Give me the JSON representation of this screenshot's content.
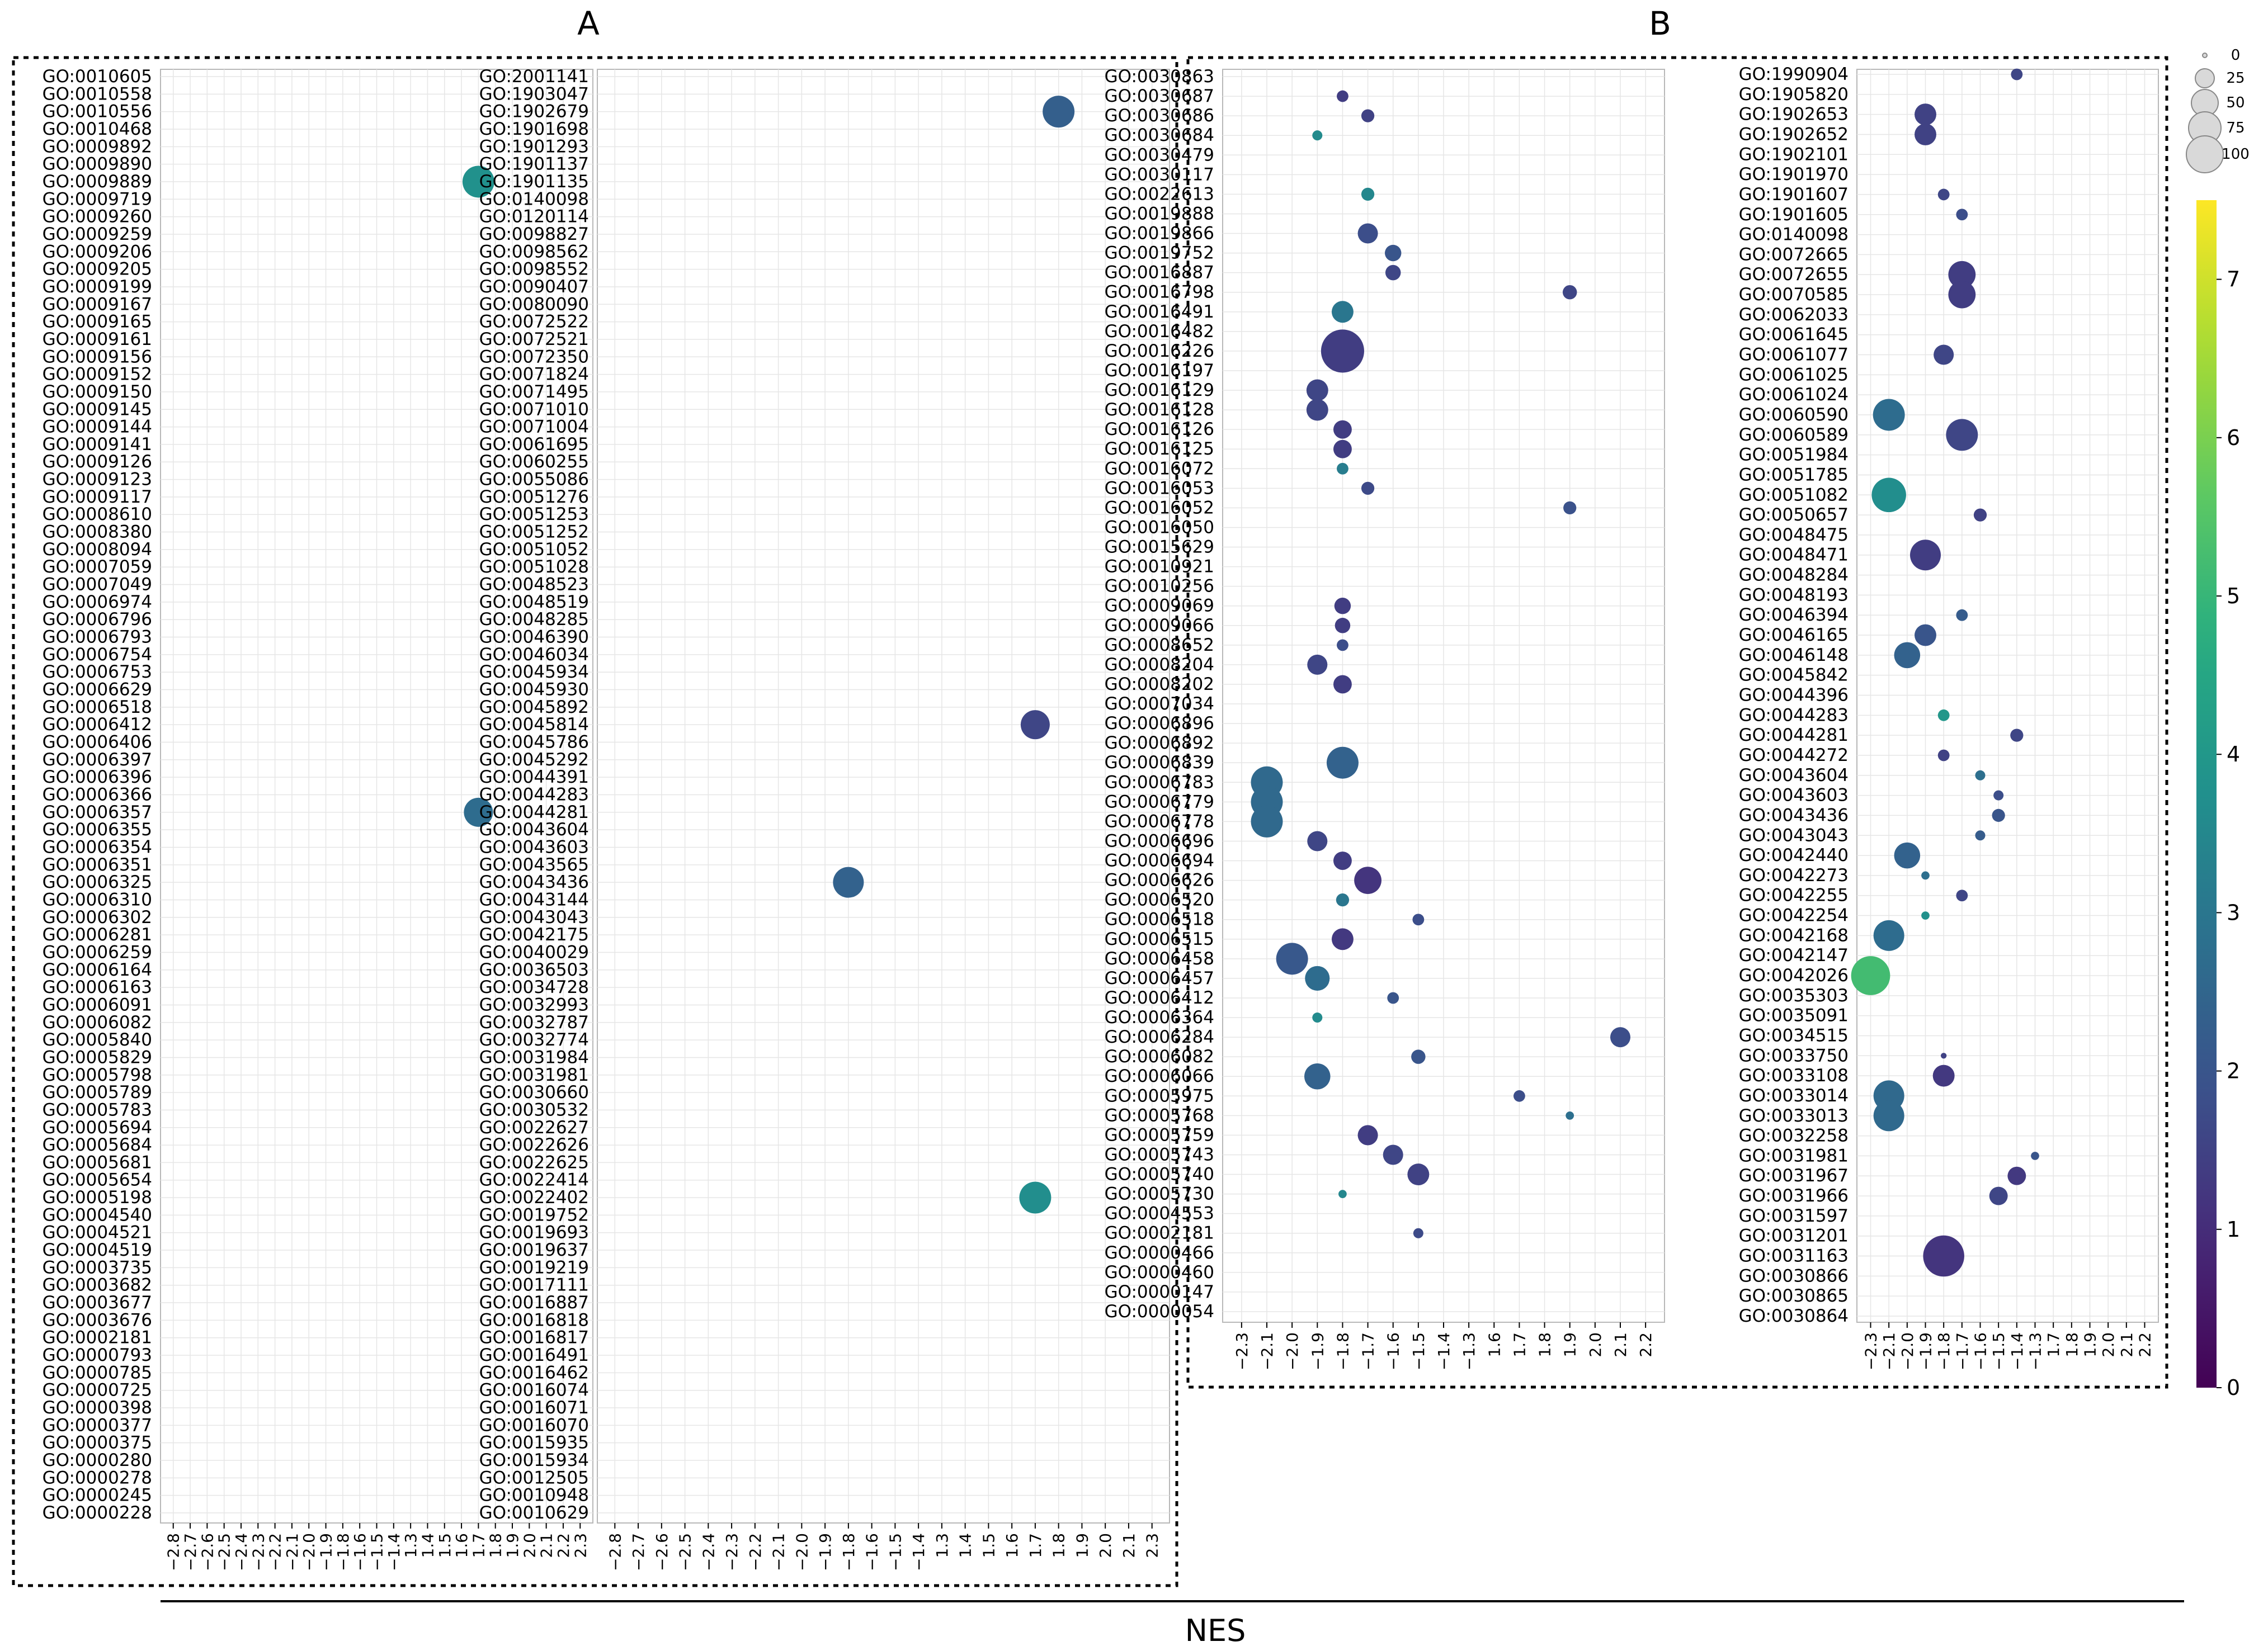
{
  "panel_labels": [
    "A",
    "B"
  ],
  "xaxis_title": "NES",
  "size_legend_values": [
    "0",
    "25",
    "50",
    "75",
    "100"
  ],
  "colorbar_ticks": [
    "0",
    "1",
    "2",
    "3",
    "4",
    "5",
    "6",
    "7"
  ],
  "chart_data": [
    {
      "type": "scatter",
      "panel": "A",
      "xlabel": "",
      "ylabel": "",
      "xticks": [
        "-2.8",
        "-2.7",
        "-2.6",
        "-2.5",
        "-2.4",
        "-2.3",
        "-2.2",
        "-2.1",
        "-2.0",
        "-1.9",
        "-1.8",
        "-1.6",
        "-1.5",
        "-1.4",
        "1.3",
        "1.4",
        "1.5",
        "1.6",
        "1.7",
        "1.8",
        "1.9",
        "2.0",
        "2.1",
        "2.2",
        "2.3"
      ],
      "categories": [
        "GO:0010605",
        "GO:0010558",
        "GO:0010556",
        "GO:0010468",
        "GO:0009892",
        "GO:0009890",
        "GO:0009889",
        "GO:0009719",
        "GO:0009260",
        "GO:0009259",
        "GO:0009206",
        "GO:0009205",
        "GO:0009199",
        "GO:0009167",
        "GO:0009165",
        "GO:0009161",
        "GO:0009156",
        "GO:0009152",
        "GO:0009150",
        "GO:0009145",
        "GO:0009144",
        "GO:0009141",
        "GO:0009126",
        "GO:0009123",
        "GO:0009117",
        "GO:0008610",
        "GO:0008380",
        "GO:0008094",
        "GO:0007059",
        "GO:0007049",
        "GO:0006974",
        "GO:0006796",
        "GO:0006793",
        "GO:0006754",
        "GO:0006753",
        "GO:0006629",
        "GO:0006518",
        "GO:0006412",
        "GO:0006406",
        "GO:0006397",
        "GO:0006396",
        "GO:0006366",
        "GO:0006357",
        "GO:0006355",
        "GO:0006354",
        "GO:0006351",
        "GO:0006325",
        "GO:0006310",
        "GO:0006302",
        "GO:0006281",
        "GO:0006259",
        "GO:0006164",
        "GO:0006163",
        "GO:0006091",
        "GO:0006082",
        "GO:0005840",
        "GO:0005829",
        "GO:0005798",
        "GO:0005789",
        "GO:0005783",
        "GO:0005694",
        "GO:0005684",
        "GO:0005681",
        "GO:0005654",
        "GO:0005198",
        "GO:0004540",
        "GO:0004521",
        "GO:0004519",
        "GO:0003735",
        "GO:0003682",
        "GO:0003677",
        "GO:0003676",
        "GO:0002181",
        "GO:0000793",
        "GO:0000785",
        "GO:0000725",
        "GO:0000398",
        "GO:0000377",
        "GO:0000375",
        "GO:0000280",
        "GO:0000278",
        "GO:0000245",
        "GO:0000228"
      ],
      "points": [
        {
          "go": "GO:0009889",
          "x": "1.7",
          "size": 30,
          "color": 3.8
        },
        {
          "go": "GO:0006357",
          "x": "1.7",
          "size": 25,
          "color": 2.7
        }
      ]
    },
    {
      "type": "scatter",
      "panel": "A",
      "xlabel": "",
      "ylabel": "",
      "xticks": [
        "-2.8",
        "-2.7",
        "-2.6",
        "-2.5",
        "-2.4",
        "-2.3",
        "-2.2",
        "-2.1",
        "-2.0",
        "-1.9",
        "-1.8",
        "-1.6",
        "-1.5",
        "-1.4",
        "1.3",
        "1.4",
        "1.5",
        "1.6",
        "1.7",
        "1.8",
        "1.9",
        "2.0",
        "2.1",
        "2.3"
      ],
      "categories": [
        "GO:2001141",
        "GO:1903047",
        "GO:1902679",
        "GO:1901698",
        "GO:1901293",
        "GO:1901137",
        "GO:1901135",
        "GO:0140098",
        "GO:0120114",
        "GO:0098827",
        "GO:0098562",
        "GO:0098552",
        "GO:0090407",
        "GO:0080090",
        "GO:0072522",
        "GO:0072521",
        "GO:0072350",
        "GO:0071824",
        "GO:0071495",
        "GO:0071010",
        "GO:0071004",
        "GO:0061695",
        "GO:0060255",
        "GO:0055086",
        "GO:0051276",
        "GO:0051253",
        "GO:0051252",
        "GO:0051052",
        "GO:0051028",
        "GO:0048523",
        "GO:0048519",
        "GO:0048285",
        "GO:0046390",
        "GO:0046034",
        "GO:0045934",
        "GO:0045930",
        "GO:0045892",
        "GO:0045814",
        "GO:0045786",
        "GO:0045292",
        "GO:0044391",
        "GO:0044283",
        "GO:0044281",
        "GO:0043604",
        "GO:0043603",
        "GO:0043565",
        "GO:0043436",
        "GO:0043144",
        "GO:0043043",
        "GO:0042175",
        "GO:0040029",
        "GO:0036503",
        "GO:0034728",
        "GO:0032993",
        "GO:0032787",
        "GO:0032774",
        "GO:0031984",
        "GO:0031981",
        "GO:0030660",
        "GO:0030532",
        "GO:0022627",
        "GO:0022626",
        "GO:0022625",
        "GO:0022414",
        "GO:0022402",
        "GO:0019752",
        "GO:0019693",
        "GO:0019637",
        "GO:0019219",
        "GO:0017111",
        "GO:0016887",
        "GO:0016818",
        "GO:0016817",
        "GO:0016491",
        "GO:0016462",
        "GO:0016074",
        "GO:0016071",
        "GO:0016070",
        "GO:0015935",
        "GO:0015934",
        "GO:0012505",
        "GO:0010948",
        "GO:0010629"
      ],
      "points": [
        {
          "go": "GO:1902679",
          "x": "1.8",
          "size": 30,
          "color": 2.3
        },
        {
          "go": "GO:0045814",
          "x": "1.7",
          "size": 25,
          "color": 1.6
        },
        {
          "go": "GO:0043436",
          "x": "-1.8",
          "size": 28,
          "color": 2.4
        },
        {
          "go": "GO:0022402",
          "x": "1.7",
          "size": 30,
          "color": 3.7
        }
      ]
    },
    {
      "type": "scatter",
      "panel": "B",
      "xlabel": "",
      "ylabel": "",
      "xticks": [
        "-2.3",
        "-2.1",
        "-2.0",
        "-1.9",
        "-1.8",
        "-1.7",
        "-1.6",
        "-1.5",
        "-1.4",
        "-1.3",
        "1.6",
        "1.7",
        "1.8",
        "1.9",
        "2.0",
        "2.1",
        "2.2"
      ],
      "categories": [
        "GO:0030863",
        "GO:0030687",
        "GO:0030686",
        "GO:0030684",
        "GO:0030479",
        "GO:0030117",
        "GO:0022613",
        "GO:0019888",
        "GO:0019866",
        "GO:0019752",
        "GO:0016887",
        "GO:0016798",
        "GO:0016491",
        "GO:0016482",
        "GO:0016226",
        "GO:0016197",
        "GO:0016129",
        "GO:0016128",
        "GO:0016126",
        "GO:0016125",
        "GO:0016072",
        "GO:0016053",
        "GO:0016052",
        "GO:0016050",
        "GO:0015629",
        "GO:0010921",
        "GO:0010256",
        "GO:0009069",
        "GO:0009066",
        "GO:0008652",
        "GO:0008204",
        "GO:0008202",
        "GO:0007034",
        "GO:0006896",
        "GO:0006892",
        "GO:0006839",
        "GO:0006783",
        "GO:0006779",
        "GO:0006778",
        "GO:0006696",
        "GO:0006694",
        "GO:0006626",
        "GO:0006520",
        "GO:0006518",
        "GO:0006515",
        "GO:0006458",
        "GO:0006457",
        "GO:0006412",
        "GO:0006364",
        "GO:0006284",
        "GO:0006082",
        "GO:0006066",
        "GO:0005975",
        "GO:0005768",
        "GO:0005759",
        "GO:0005743",
        "GO:0005740",
        "GO:0005730",
        "GO:0004553",
        "GO:0002181",
        "GO:0000466",
        "GO:0000460",
        "GO:0000147",
        "GO:0000054"
      ],
      "points": [
        {
          "go": "GO:0030687",
          "x": "-1.8",
          "size": 4,
          "color": 1.4
        },
        {
          "go": "GO:0030686",
          "x": "-1.7",
          "size": 5,
          "color": 1.5
        },
        {
          "go": "GO:0030684",
          "x": "-1.9",
          "size": 3,
          "color": 3.6
        },
        {
          "go": "GO:0022613",
          "x": "-1.7",
          "size": 5,
          "color": 3.5
        },
        {
          "go": "GO:0019866",
          "x": "-1.7",
          "size": 12,
          "color": 1.8
        },
        {
          "go": "GO:0019752",
          "x": "-1.6",
          "size": 8,
          "color": 2.0
        },
        {
          "go": "GO:0016887",
          "x": "-1.6",
          "size": 7,
          "color": 1.6
        },
        {
          "go": "GO:0016798",
          "x": "1.9",
          "size": 6,
          "color": 1.6
        },
        {
          "go": "GO:0016491",
          "x": "-1.8",
          "size": 14,
          "color": 3.0
        },
        {
          "go": "GO:0016226",
          "x": "-1.8",
          "size": 55,
          "color": 1.4
        },
        {
          "go": "GO:0016129",
          "x": "-1.9",
          "size": 14,
          "color": 1.6
        },
        {
          "go": "GO:0016128",
          "x": "-1.9",
          "size": 14,
          "color": 1.6
        },
        {
          "go": "GO:0016126",
          "x": "-1.8",
          "size": 10,
          "color": 1.4
        },
        {
          "go": "GO:0016125",
          "x": "-1.8",
          "size": 10,
          "color": 1.4
        },
        {
          "go": "GO:0016072",
          "x": "-1.8",
          "size": 4,
          "color": 3.2
        },
        {
          "go": "GO:0016053",
          "x": "-1.7",
          "size": 5,
          "color": 1.7
        },
        {
          "go": "GO:0016052",
          "x": "1.9",
          "size": 5,
          "color": 1.9
        },
        {
          "go": "GO:0009069",
          "x": "-1.8",
          "size": 8,
          "color": 1.4
        },
        {
          "go": "GO:0009066",
          "x": "-1.8",
          "size": 7,
          "color": 1.4
        },
        {
          "go": "GO:0008652",
          "x": "-1.8",
          "size": 4,
          "color": 1.8
        },
        {
          "go": "GO:0008204",
          "x": "-1.9",
          "size": 12,
          "color": 1.6
        },
        {
          "go": "GO:0008202",
          "x": "-1.8",
          "size": 10,
          "color": 1.4
        },
        {
          "go": "GO:0006839",
          "x": "-1.8",
          "size": 30,
          "color": 2.4
        },
        {
          "go": "GO:0006783",
          "x": "-2.1",
          "size": 30,
          "color": 2.6
        },
        {
          "go": "GO:0006779",
          "x": "-2.1",
          "size": 30,
          "color": 2.6
        },
        {
          "go": "GO:0006778",
          "x": "-2.1",
          "size": 30,
          "color": 2.6
        },
        {
          "go": "GO:0006696",
          "x": "-1.9",
          "size": 12,
          "color": 1.6
        },
        {
          "go": "GO:0006694",
          "x": "-1.8",
          "size": 10,
          "color": 1.4
        },
        {
          "go": "GO:0006626",
          "x": "-1.7",
          "size": 22,
          "color": 1.2
        },
        {
          "go": "GO:0006520",
          "x": "-1.8",
          "size": 5,
          "color": 3.0
        },
        {
          "go": "GO:0006518",
          "x": "-1.5",
          "size": 4,
          "color": 1.8
        },
        {
          "go": "GO:0006515",
          "x": "-1.8",
          "size": 14,
          "color": 1.3
        },
        {
          "go": "GO:0006458",
          "x": "-2.0",
          "size": 30,
          "color": 2.1
        },
        {
          "go": "GO:0006457",
          "x": "-1.9",
          "size": 18,
          "color": 2.7
        },
        {
          "go": "GO:0006412",
          "x": "-1.6",
          "size": 4,
          "color": 2.0
        },
        {
          "go": "GO:0006364",
          "x": "-1.9",
          "size": 3,
          "color": 3.6
        },
        {
          "go": "GO:0006284",
          "x": "2.1",
          "size": 12,
          "color": 1.8
        },
        {
          "go": "GO:0006082",
          "x": "-1.5",
          "size": 6,
          "color": 2.0
        },
        {
          "go": "GO:0006066",
          "x": "-1.9",
          "size": 20,
          "color": 2.4
        },
        {
          "go": "GO:0005975",
          "x": "1.7",
          "size": 4,
          "color": 1.8
        },
        {
          "go": "GO:0005768",
          "x": "1.9",
          "size": 2,
          "color": 2.8
        },
        {
          "go": "GO:0005759",
          "x": "-1.7",
          "size": 12,
          "color": 1.4
        },
        {
          "go": "GO:0005743",
          "x": "-1.6",
          "size": 12,
          "color": 1.6
        },
        {
          "go": "GO:0005740",
          "x": "-1.5",
          "size": 14,
          "color": 1.5
        },
        {
          "go": "GO:0005730",
          "x": "-1.8",
          "size": 2,
          "color": 3.5
        },
        {
          "go": "GO:0002181",
          "x": "-1.5",
          "size": 3,
          "color": 1.7
        }
      ]
    },
    {
      "type": "scatter",
      "panel": "B",
      "xlabel": "",
      "ylabel": "",
      "xticks": [
        "-2.3",
        "-2.1",
        "-2.0",
        "-1.9",
        "-1.8",
        "-1.7",
        "-1.6",
        "-1.5",
        "-1.4",
        "-1.3",
        "1.7",
        "1.8",
        "1.9",
        "2.0",
        "2.1",
        "2.2"
      ],
      "categories": [
        "GO:1990904",
        "GO:1905820",
        "GO:1902653",
        "GO:1902652",
        "GO:1902101",
        "GO:1901970",
        "GO:1901607",
        "GO:1901605",
        "GO:0140098",
        "GO:0072665",
        "GO:0072655",
        "GO:0070585",
        "GO:0062033",
        "GO:0061645",
        "GO:0061077",
        "GO:0061025",
        "GO:0061024",
        "GO:0060590",
        "GO:0060589",
        "GO:0051984",
        "GO:0051785",
        "GO:0051082",
        "GO:0050657",
        "GO:0048475",
        "GO:0048471",
        "GO:0048284",
        "GO:0048193",
        "GO:0046394",
        "GO:0046165",
        "GO:0046148",
        "GO:0045842",
        "GO:0044396",
        "GO:0044283",
        "GO:0044281",
        "GO:0044272",
        "GO:0043604",
        "GO:0043603",
        "GO:0043436",
        "GO:0043043",
        "GO:0042440",
        "GO:0042273",
        "GO:0042255",
        "GO:0042254",
        "GO:0042168",
        "GO:0042147",
        "GO:0042026",
        "GO:0035303",
        "GO:0035091",
        "GO:0034515",
        "GO:0033750",
        "GO:0033108",
        "GO:0033014",
        "GO:0033013",
        "GO:0032258",
        "GO:0031981",
        "GO:0031967",
        "GO:0031966",
        "GO:0031597",
        "GO:0031201",
        "GO:0031163",
        "GO:0030866",
        "GO:0030865",
        "GO:0030864"
      ],
      "points": [
        {
          "go": "GO:1990904",
          "x": "-1.4",
          "size": 4,
          "color": 1.6
        },
        {
          "go": "GO:1902653",
          "x": "-1.9",
          "size": 14,
          "color": 1.5
        },
        {
          "go": "GO:1902652",
          "x": "-1.9",
          "size": 14,
          "color": 1.5
        },
        {
          "go": "GO:1901607",
          "x": "-1.8",
          "size": 4,
          "color": 1.6
        },
        {
          "go": "GO:1901605",
          "x": "-1.7",
          "size": 4,
          "color": 1.8
        },
        {
          "go": "GO:0072655",
          "x": "-1.7",
          "size": 22,
          "color": 1.4
        },
        {
          "go": "GO:0070585",
          "x": "-1.7",
          "size": 22,
          "color": 1.4
        },
        {
          "go": "GO:0061077",
          "x": "-1.8",
          "size": 12,
          "color": 1.6
        },
        {
          "go": "GO:0060590",
          "x": "-2.1",
          "size": 30,
          "color": 2.7
        },
        {
          "go": "GO:0060589",
          "x": "-1.7",
          "size": 30,
          "color": 1.6
        },
        {
          "go": "GO:0051082",
          "x": "-2.1",
          "size": 35,
          "color": 3.7
        },
        {
          "go": "GO:0050657",
          "x": "-1.6",
          "size": 5,
          "color": 1.5
        },
        {
          "go": "GO:0048471",
          "x": "-1.9",
          "size": 28,
          "color": 1.4
        },
        {
          "go": "GO:0046394",
          "x": "-1.7",
          "size": 4,
          "color": 2.2
        },
        {
          "go": "GO:0046165",
          "x": "-1.9",
          "size": 14,
          "color": 2.0
        },
        {
          "go": "GO:0046148",
          "x": "-2.0",
          "size": 20,
          "color": 2.4
        },
        {
          "go": "GO:0044283",
          "x": "-1.8",
          "size": 4,
          "color": 4.0
        },
        {
          "go": "GO:0044281",
          "x": "-1.4",
          "size": 5,
          "color": 1.6
        },
        {
          "go": "GO:0044272",
          "x": "-1.8",
          "size": 4,
          "color": 1.5
        },
        {
          "go": "GO:0043604",
          "x": "-1.6",
          "size": 3,
          "color": 2.8
        },
        {
          "go": "GO:0043603",
          "x": "-1.5",
          "size": 3,
          "color": 1.8
        },
        {
          "go": "GO:0043436",
          "x": "-1.5",
          "size": 5,
          "color": 2.0
        },
        {
          "go": "GO:0043043",
          "x": "-1.6",
          "size": 3,
          "color": 2.2
        },
        {
          "go": "GO:0042440",
          "x": "-2.0",
          "size": 20,
          "color": 2.4
        },
        {
          "go": "GO:0042273",
          "x": "-1.9",
          "size": 2,
          "color": 2.8
        },
        {
          "go": "GO:0042255",
          "x": "-1.7",
          "size": 4,
          "color": 1.6
        },
        {
          "go": "GO:0042254",
          "x": "-1.9",
          "size": 2,
          "color": 3.8
        },
        {
          "go": "GO:0042168",
          "x": "-2.1",
          "size": 28,
          "color": 2.7
        },
        {
          "go": "GO:0042026",
          "x": "-2.3",
          "size": 45,
          "color": 5.2
        },
        {
          "go": "GO:0033750",
          "x": "-1.8",
          "size": 1,
          "color": 1.5
        },
        {
          "go": "GO:0033108",
          "x": "-1.8",
          "size": 14,
          "color": 1.3
        },
        {
          "go": "GO:0033014",
          "x": "-2.1",
          "size": 28,
          "color": 2.6
        },
        {
          "go": "GO:0033013",
          "x": "-2.1",
          "size": 28,
          "color": 2.6
        },
        {
          "go": "GO:0031981",
          "x": "-1.3",
          "size": 2,
          "color": 2.0
        },
        {
          "go": "GO:0031967",
          "x": "-1.4",
          "size": 10,
          "color": 1.3
        },
        {
          "go": "GO:0031966",
          "x": "-1.5",
          "size": 10,
          "color": 1.6
        },
        {
          "go": "GO:0031163",
          "x": "-1.8",
          "size": 50,
          "color": 1.2
        }
      ]
    }
  ]
}
